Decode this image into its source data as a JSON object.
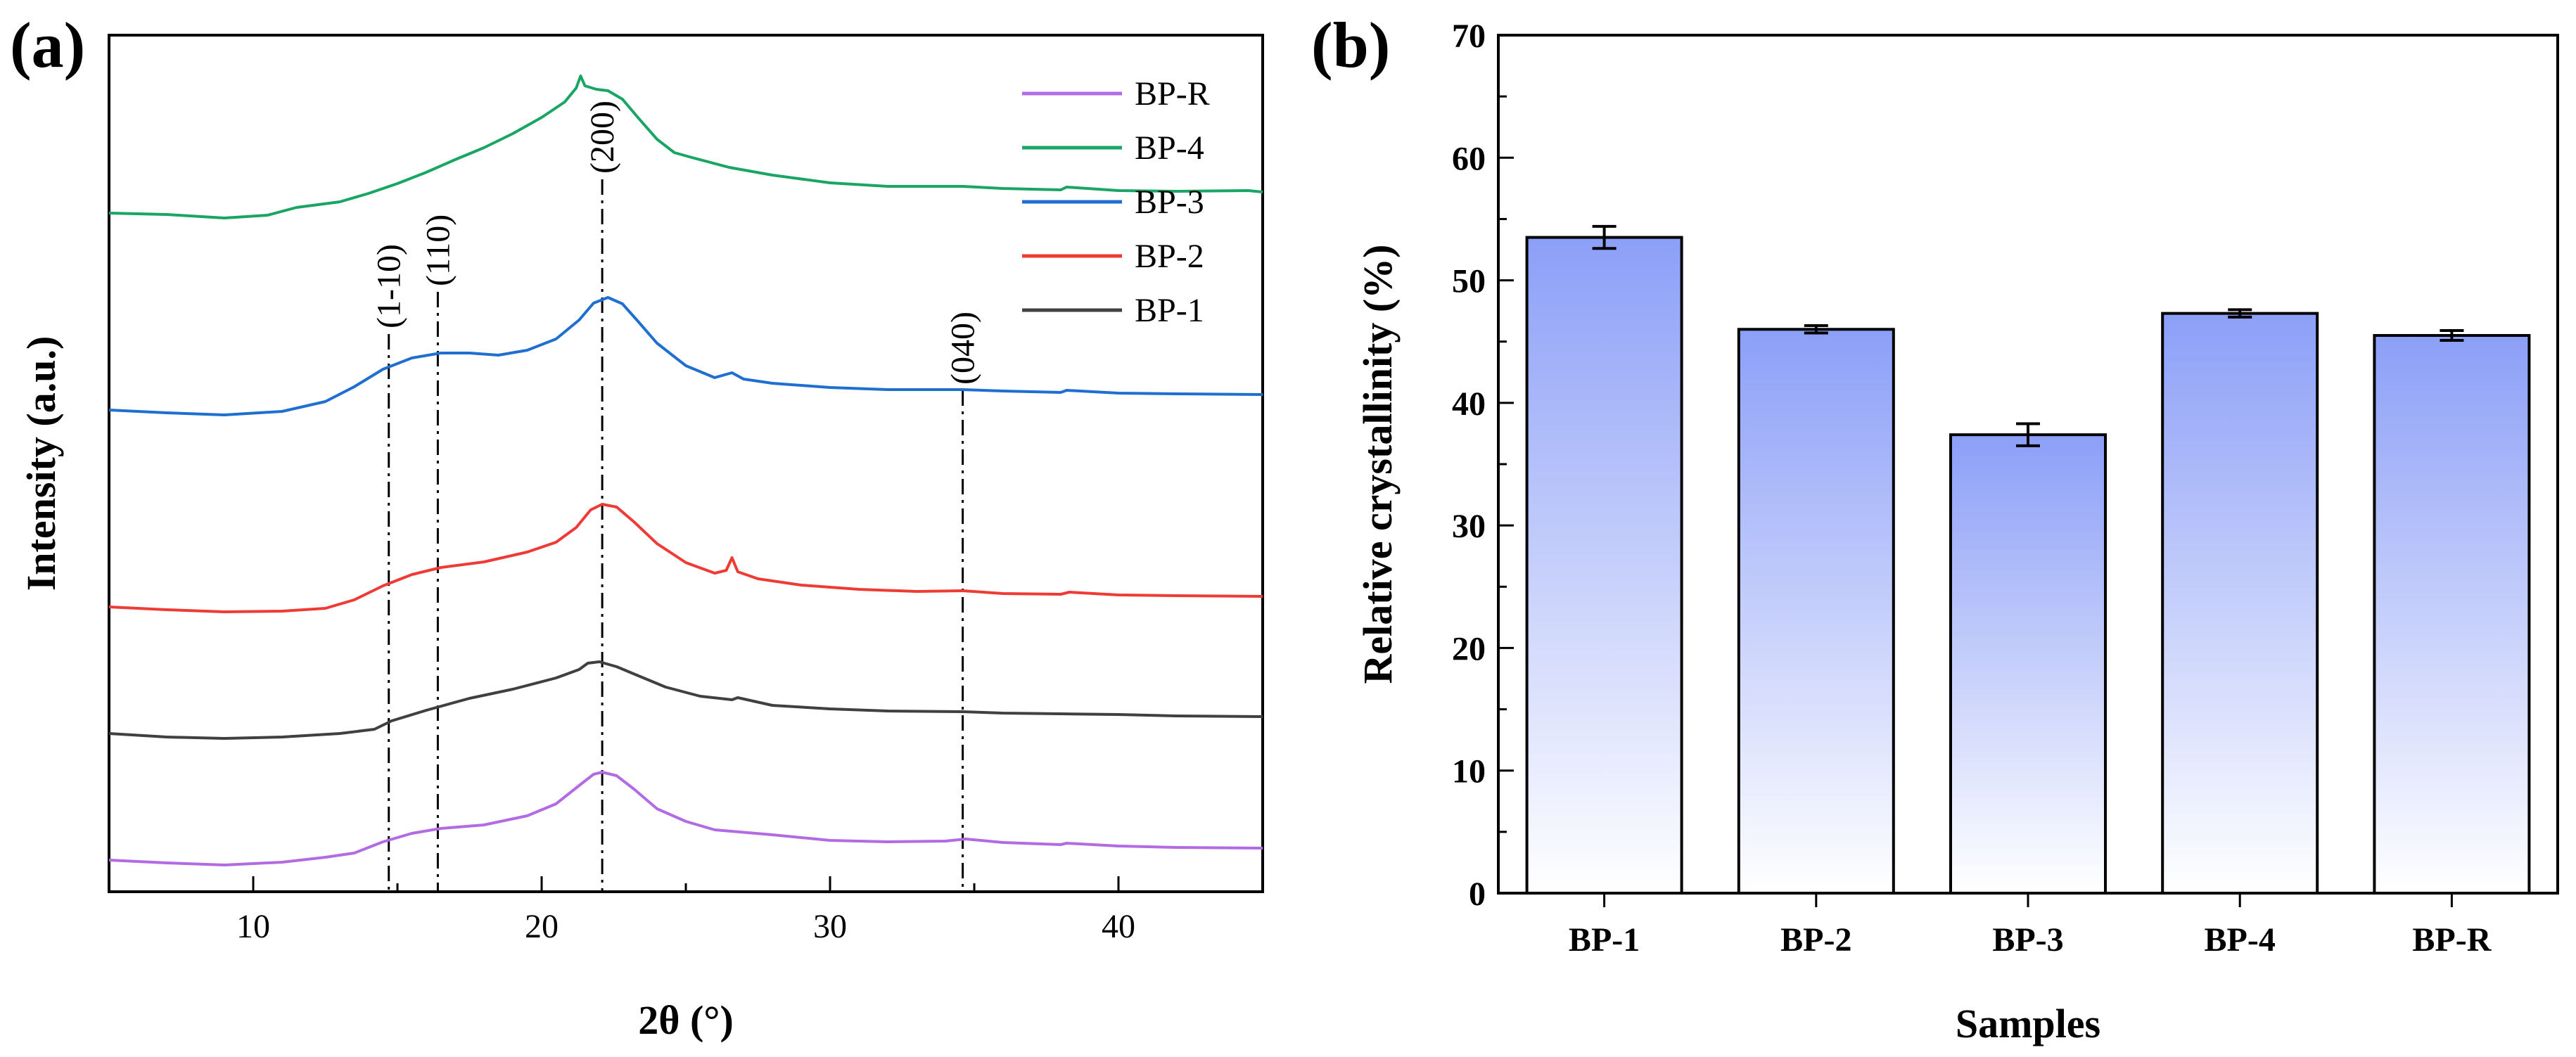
{
  "chart_data": [
    {
      "panel": "(a)",
      "type": "line",
      "title": "",
      "xlabel": "2θ (°)",
      "ylabel": "Intensity (a.u.)",
      "xlim": [
        5,
        45
      ],
      "xticks": [
        10,
        20,
        30,
        40
      ],
      "yticks_shown": false,
      "legend_position": "top-right",
      "legend": [
        "BP-R",
        "BP-4",
        "BP-3",
        "BP-2",
        "BP-1"
      ],
      "reference_lines": [
        {
          "x": 14.7,
          "label": "(1-10)"
        },
        {
          "x": 16.4,
          "label": "(110)"
        },
        {
          "x": 22.1,
          "label": "(200)"
        },
        {
          "x": 34.6,
          "label": "(040)"
        }
      ],
      "series": [
        {
          "name": "BP-R",
          "color": "#b36be3",
          "offset": 0,
          "points": [
            [
              5,
              12
            ],
            [
              7,
              8
            ],
            [
              9,
              5
            ],
            [
              11,
              9
            ],
            [
              12.5,
              16
            ],
            [
              13.5,
              22
            ],
            [
              14.5,
              38
            ],
            [
              15.5,
              50
            ],
            [
              16.5,
              57
            ],
            [
              18,
              62
            ],
            [
              19.5,
              75
            ],
            [
              20.5,
              92
            ],
            [
              21.3,
              118
            ],
            [
              21.8,
              134
            ],
            [
              22.1,
              137
            ],
            [
              22.6,
              132
            ],
            [
              23.2,
              113
            ],
            [
              24,
              85
            ],
            [
              25,
              67
            ],
            [
              26,
              55
            ],
            [
              28,
              48
            ],
            [
              30,
              40
            ],
            [
              32,
              38
            ],
            [
              34,
              39
            ],
            [
              34.7,
              42
            ],
            [
              36,
              37
            ],
            [
              38,
              34
            ],
            [
              38.2,
              36
            ],
            [
              40,
              32
            ],
            [
              42,
              30
            ],
            [
              45,
              29
            ]
          ]
        },
        {
          "name": "BP-1",
          "color": "#404040",
          "offset": 180,
          "points": [
            [
              5,
              12
            ],
            [
              7,
              7
            ],
            [
              9,
              5
            ],
            [
              11,
              7
            ],
            [
              13,
              12
            ],
            [
              14.2,
              18
            ],
            [
              14.8,
              30
            ],
            [
              16,
              45
            ],
            [
              17.5,
              62
            ],
            [
              19,
              75
            ],
            [
              20.5,
              91
            ],
            [
              21.3,
              103
            ],
            [
              21.6,
              112
            ],
            [
              22,
              114
            ],
            [
              22.6,
              107
            ],
            [
              23.3,
              95
            ],
            [
              24.3,
              78
            ],
            [
              25.5,
              65
            ],
            [
              26.6,
              60
            ],
            [
              26.8,
              63
            ],
            [
              28,
              52
            ],
            [
              30,
              47
            ],
            [
              32,
              44
            ],
            [
              34.6,
              43
            ],
            [
              36,
              41
            ],
            [
              38,
              40
            ],
            [
              40,
              39
            ],
            [
              42,
              37
            ],
            [
              45,
              36
            ]
          ]
        },
        {
          "name": "BP-2",
          "color": "#ef3b35",
          "offset": 360,
          "points": [
            [
              5,
              12
            ],
            [
              7,
              8
            ],
            [
              9,
              5
            ],
            [
              11,
              6
            ],
            [
              12.5,
              10
            ],
            [
              13.5,
              22
            ],
            [
              14.5,
              42
            ],
            [
              15.5,
              58
            ],
            [
              16.5,
              68
            ],
            [
              18,
              76
            ],
            [
              19.5,
              90
            ],
            [
              20.5,
              104
            ],
            [
              21.2,
              125
            ],
            [
              21.7,
              150
            ],
            [
              22.1,
              158
            ],
            [
              22.6,
              154
            ],
            [
              23.2,
              133
            ],
            [
              24,
              102
            ],
            [
              25,
              75
            ],
            [
              26,
              60
            ],
            [
              26.4,
              64
            ],
            [
              26.6,
              82
            ],
            [
              26.8,
              62
            ],
            [
              27.5,
              52
            ],
            [
              29,
              43
            ],
            [
              31,
              37
            ],
            [
              33,
              34
            ],
            [
              34.6,
              35
            ],
            [
              36,
              31
            ],
            [
              38,
              30
            ],
            [
              38.3,
              33
            ],
            [
              40,
              29
            ],
            [
              42,
              28
            ],
            [
              45,
              27
            ]
          ]
        },
        {
          "name": "BP-3",
          "color": "#1f6fd1",
          "offset": 640,
          "points": [
            [
              5,
              12
            ],
            [
              7,
              8
            ],
            [
              9,
              5
            ],
            [
              11,
              10
            ],
            [
              12.5,
              24
            ],
            [
              13.5,
              45
            ],
            [
              14.5,
              70
            ],
            [
              15.5,
              86
            ],
            [
              16.5,
              93
            ],
            [
              17.5,
              93
            ],
            [
              18.5,
              90
            ],
            [
              19.5,
              97
            ],
            [
              20.5,
              113
            ],
            [
              21.3,
              140
            ],
            [
              21.8,
              164
            ],
            [
              22.3,
              172
            ],
            [
              22.8,
              163
            ],
            [
              23.3,
              140
            ],
            [
              24,
              107
            ],
            [
              25,
              75
            ],
            [
              26,
              58
            ],
            [
              26.6,
              65
            ],
            [
              27,
              56
            ],
            [
              28,
              50
            ],
            [
              30,
              44
            ],
            [
              32,
              41
            ],
            [
              34.6,
              41
            ],
            [
              36,
              39
            ],
            [
              38,
              37
            ],
            [
              38.2,
              40
            ],
            [
              40,
              36
            ],
            [
              42,
              35
            ],
            [
              45,
              34
            ]
          ]
        },
        {
          "name": "BP-4",
          "color": "#1aa564",
          "offset": 920,
          "points": [
            [
              5,
              12
            ],
            [
              7,
              10
            ],
            [
              9,
              5
            ],
            [
              10.5,
              9
            ],
            [
              11.5,
              20
            ],
            [
              13,
              28
            ],
            [
              14,
              40
            ],
            [
              15,
              54
            ],
            [
              16,
              70
            ],
            [
              17,
              88
            ],
            [
              18,
              105
            ],
            [
              19,
              125
            ],
            [
              20,
              148
            ],
            [
              20.8,
              170
            ],
            [
              21.2,
              190
            ],
            [
              21.35,
              207
            ],
            [
              21.5,
              193
            ],
            [
              21.9,
              188
            ],
            [
              22.3,
              186
            ],
            [
              22.8,
              174
            ],
            [
              23.4,
              145
            ],
            [
              24,
              117
            ],
            [
              24.6,
              98
            ],
            [
              25.3,
              90
            ],
            [
              26.5,
              77
            ],
            [
              28,
              66
            ],
            [
              30,
              55
            ],
            [
              32,
              50
            ],
            [
              34.6,
              50
            ],
            [
              36,
              47
            ],
            [
              38,
              45
            ],
            [
              38.2,
              49
            ],
            [
              40,
              44
            ],
            [
              42,
              43
            ],
            [
              44.5,
              44
            ],
            [
              45,
              42
            ]
          ]
        }
      ]
    },
    {
      "panel": "(b)",
      "type": "bar",
      "title": "",
      "xlabel": "Samples",
      "ylabel": "Relative crystallinity (%)",
      "ylim": [
        0,
        70
      ],
      "yticks": [
        0,
        10,
        20,
        30,
        40,
        50,
        60,
        70
      ],
      "categories": [
        "BP-1",
        "BP-2",
        "BP-3",
        "BP-4",
        "BP-R"
      ],
      "values": [
        53.5,
        46.0,
        37.4,
        47.3,
        45.5
      ],
      "errors": [
        0.9,
        0.3,
        0.9,
        0.3,
        0.4
      ],
      "bar_color": "#8c9ff7",
      "gradient_to": "#ffffff",
      "grid": false
    }
  ]
}
